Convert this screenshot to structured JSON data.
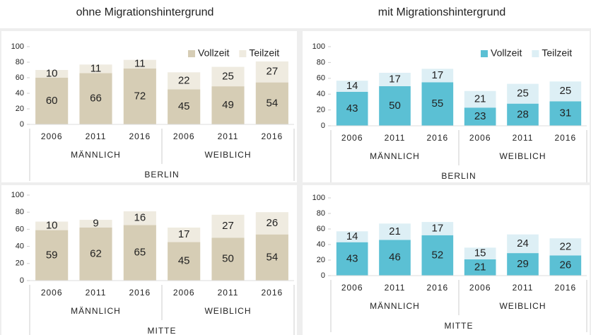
{
  "headers": [
    "ohne Migrationshintergrund",
    "mit Migrationshintergrund"
  ],
  "chart_data": [
    {
      "type": "bar",
      "stacked": true,
      "categories": [
        "2006",
        "2011",
        "2016",
        "2006",
        "2011",
        "2016"
      ],
      "groups": [
        "MÄNNLICH",
        "WEIBLICH"
      ],
      "xlabel": "BERLIN",
      "ylim": [
        0,
        100
      ],
      "yticks": [
        0,
        20,
        40,
        60,
        80,
        100
      ],
      "legend": "upper right",
      "series": [
        {
          "name": "Vollzeit",
          "color": "#d6cdb5",
          "values": [
            60,
            66,
            72,
            45,
            49,
            54
          ]
        },
        {
          "name": "Teilzeit",
          "color": "#efebe0",
          "values": [
            10,
            11,
            11,
            22,
            25,
            27
          ]
        }
      ]
    },
    {
      "type": "bar",
      "stacked": true,
      "categories": [
        "2006",
        "2011",
        "2016",
        "2006",
        "2011",
        "2016"
      ],
      "groups": [
        "MÄNNLICH",
        "WEIBLICH"
      ],
      "xlabel": "BERLIN",
      "ylim": [
        0,
        100
      ],
      "yticks": [
        0,
        20,
        40,
        60,
        80,
        100
      ],
      "legend": "upper right",
      "series": [
        {
          "name": "Vollzeit",
          "color": "#5bc0d4",
          "values": [
            43,
            50,
            55,
            23,
            28,
            31
          ]
        },
        {
          "name": "Teilzeit",
          "color": "#ddeff5",
          "values": [
            14,
            17,
            17,
            21,
            25,
            25
          ]
        }
      ]
    },
    {
      "type": "bar",
      "stacked": true,
      "categories": [
        "2006",
        "2011",
        "2016",
        "2006",
        "2011",
        "2016"
      ],
      "groups": [
        "MÄNNLICH",
        "WEIBLICH"
      ],
      "xlabel": "MITTE",
      "ylim": [
        0,
        100
      ],
      "yticks": [
        0,
        20,
        40,
        60,
        80,
        100
      ],
      "series": [
        {
          "color": "#d6cdb5",
          "values": [
            59,
            62,
            65,
            45,
            50,
            54
          ]
        },
        {
          "color": "#efebe0",
          "values": [
            10,
            9,
            16,
            17,
            27,
            26
          ]
        }
      ]
    },
    {
      "type": "bar",
      "stacked": true,
      "categories": [
        "2006",
        "2011",
        "2016",
        "2006",
        "2011",
        "2016"
      ],
      "groups": [
        "MÄNNLICH",
        "WEIBLICH"
      ],
      "xlabel": "MITTE",
      "ylim": [
        0,
        100
      ],
      "yticks": [
        0,
        20,
        40,
        60,
        80,
        100
      ],
      "series": [
        {
          "color": "#5bc0d4",
          "values": [
            43,
            46,
            52,
            21,
            29,
            26
          ]
        },
        {
          "color": "#ddeff5",
          "values": [
            14,
            21,
            17,
            15,
            24,
            22
          ]
        }
      ]
    }
  ]
}
